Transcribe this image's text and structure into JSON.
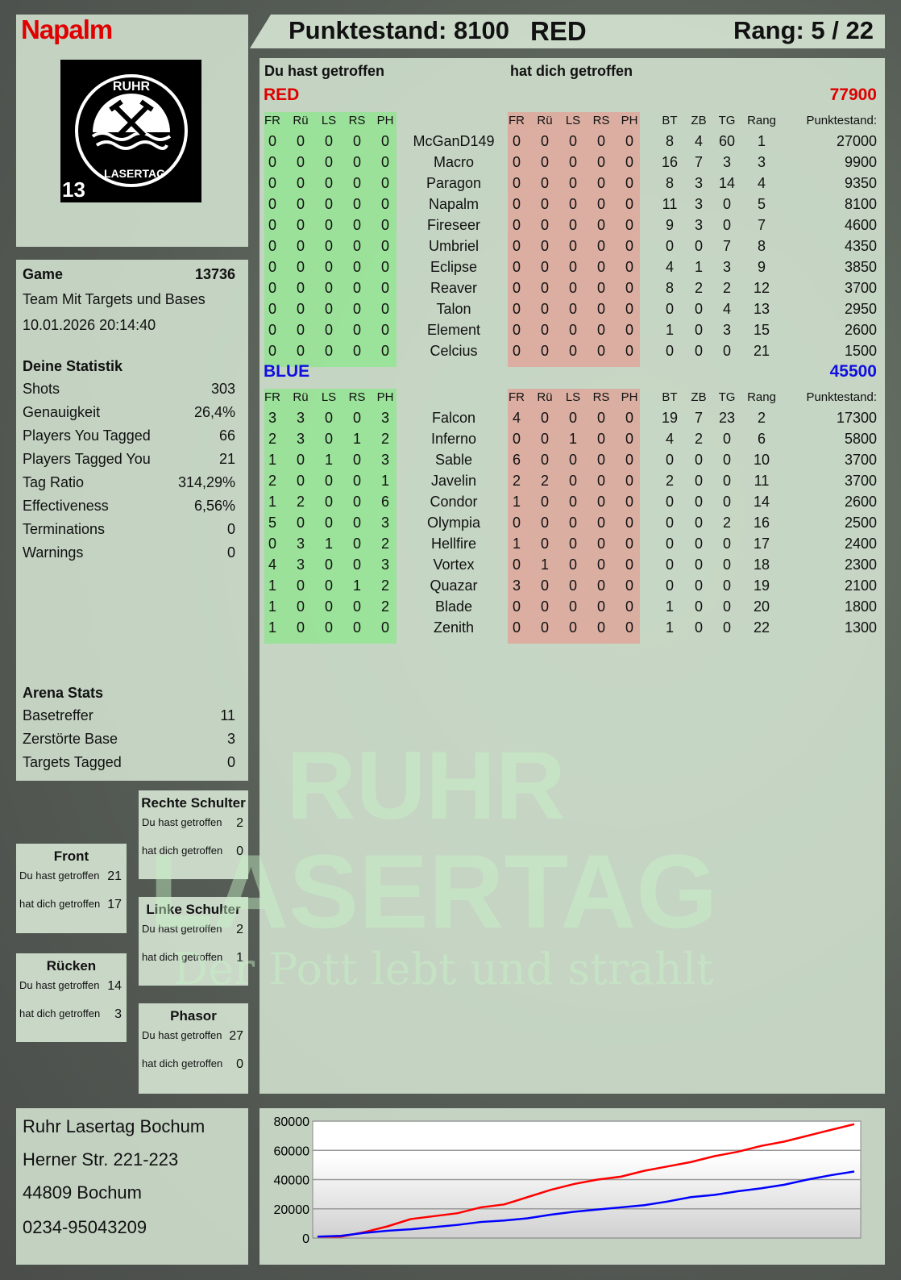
{
  "player": {
    "name": "Napalm",
    "score_label": "Punktestand: 8100",
    "team": "RED",
    "rank_label": "Rang: 5 / 22"
  },
  "logo": {
    "top": "RUHR",
    "bottom": "LASERTAG",
    "number": "13"
  },
  "watermark": {
    "line1": "RUHR",
    "line2": "LASERTAG",
    "slogan": "Der Pott lebt und strahlt"
  },
  "game": {
    "label": "Game",
    "id": "13736",
    "mode": "Team Mit Targets und Bases",
    "datetime": "10.01.2026 20:14:40"
  },
  "stats": {
    "title": "Deine Statistik",
    "rows": [
      [
        "Shots",
        "303"
      ],
      [
        "Genauigkeit",
        "26,4%"
      ],
      [
        "Players You Tagged",
        "66"
      ],
      [
        "Players Tagged You",
        "21"
      ],
      [
        "Tag Ratio",
        "314,29%"
      ],
      [
        "Effectiveness",
        "6,56%"
      ],
      [
        "Terminations",
        "0"
      ],
      [
        "Warnings",
        "0"
      ]
    ]
  },
  "arena": {
    "title": "Arena Stats",
    "rows": [
      [
        "Basetreffer",
        "11"
      ],
      [
        "Zerstörte Base",
        "3"
      ],
      [
        "Targets Tagged",
        "0"
      ]
    ]
  },
  "zones": [
    {
      "title": "Rechte Schulter",
      "hit_label": "Du hast getroffen",
      "hit": "2",
      "got_label": "hat dich getroffen",
      "got": "0"
    },
    {
      "title": "Front",
      "hit_label": "Du hast getroffen",
      "hit": "21",
      "got_label": "hat dich getroffen",
      "got": "17"
    },
    {
      "title": "Linke Schulter",
      "hit_label": "Du hast getroffen",
      "hit": "2",
      "got_label": "hat dich getroffen",
      "got": "1"
    },
    {
      "title": "Rücken",
      "hit_label": "Du hast getroffen",
      "hit": "14",
      "got_label": "hat dich getroffen",
      "got": "3"
    },
    {
      "title": "Phasor",
      "hit_label": "Du hast getroffen",
      "hit": "27",
      "got_label": "hat dich getroffen",
      "got": "0"
    }
  ],
  "address": [
    "Ruhr Lasertag Bochum",
    "Herner Str. 221-223",
    "44809 Bochum",
    "0234-95043209"
  ],
  "table": {
    "hit_title": "Du hast getroffen",
    "got_title": "hat dich getroffen",
    "columns_hit": [
      "FR",
      "Rü",
      "LS",
      "RS",
      "PH"
    ],
    "columns_got": [
      "FR",
      "Rü",
      "LS",
      "RS",
      "PH"
    ],
    "columns_stats": [
      "BT",
      "ZB",
      "TG",
      "Rang",
      "Punktestand:"
    ],
    "teams": [
      {
        "name": "RED",
        "total": "77900",
        "color": "#e00000",
        "rows": [
          [
            "0",
            "0",
            "0",
            "0",
            "0",
            "McGanD149",
            "0",
            "0",
            "0",
            "0",
            "0",
            "8",
            "4",
            "60",
            "1",
            "27000"
          ],
          [
            "0",
            "0",
            "0",
            "0",
            "0",
            "Macro",
            "0",
            "0",
            "0",
            "0",
            "0",
            "16",
            "7",
            "3",
            "3",
            "9900"
          ],
          [
            "0",
            "0",
            "0",
            "0",
            "0",
            "Paragon",
            "0",
            "0",
            "0",
            "0",
            "0",
            "8",
            "3",
            "14",
            "4",
            "9350"
          ],
          [
            "0",
            "0",
            "0",
            "0",
            "0",
            "Napalm",
            "0",
            "0",
            "0",
            "0",
            "0",
            "11",
            "3",
            "0",
            "5",
            "8100"
          ],
          [
            "0",
            "0",
            "0",
            "0",
            "0",
            "Fireseer",
            "0",
            "0",
            "0",
            "0",
            "0",
            "9",
            "3",
            "0",
            "7",
            "4600"
          ],
          [
            "0",
            "0",
            "0",
            "0",
            "0",
            "Umbriel",
            "0",
            "0",
            "0",
            "0",
            "0",
            "0",
            "0",
            "7",
            "8",
            "4350"
          ],
          [
            "0",
            "0",
            "0",
            "0",
            "0",
            "Eclipse",
            "0",
            "0",
            "0",
            "0",
            "0",
            "4",
            "1",
            "3",
            "9",
            "3850"
          ],
          [
            "0",
            "0",
            "0",
            "0",
            "0",
            "Reaver",
            "0",
            "0",
            "0",
            "0",
            "0",
            "8",
            "2",
            "2",
            "12",
            "3700"
          ],
          [
            "0",
            "0",
            "0",
            "0",
            "0",
            "Talon",
            "0",
            "0",
            "0",
            "0",
            "0",
            "0",
            "0",
            "4",
            "13",
            "2950"
          ],
          [
            "0",
            "0",
            "0",
            "0",
            "0",
            "Element",
            "0",
            "0",
            "0",
            "0",
            "0",
            "1",
            "0",
            "3",
            "15",
            "2600"
          ],
          [
            "0",
            "0",
            "0",
            "0",
            "0",
            "Celcius",
            "0",
            "0",
            "0",
            "0",
            "0",
            "0",
            "0",
            "0",
            "21",
            "1500"
          ]
        ]
      },
      {
        "name": "BLUE",
        "total": "45500",
        "color": "#1010e0",
        "rows": [
          [
            "3",
            "3",
            "0",
            "0",
            "3",
            "Falcon",
            "4",
            "0",
            "0",
            "0",
            "0",
            "19",
            "7",
            "23",
            "2",
            "17300"
          ],
          [
            "2",
            "3",
            "0",
            "1",
            "2",
            "Inferno",
            "0",
            "0",
            "1",
            "0",
            "0",
            "4",
            "2",
            "0",
            "6",
            "5800"
          ],
          [
            "1",
            "0",
            "1",
            "0",
            "3",
            "Sable",
            "6",
            "0",
            "0",
            "0",
            "0",
            "0",
            "0",
            "0",
            "10",
            "3700"
          ],
          [
            "2",
            "0",
            "0",
            "0",
            "1",
            "Javelin",
            "2",
            "2",
            "0",
            "0",
            "0",
            "2",
            "0",
            "0",
            "11",
            "3700"
          ],
          [
            "1",
            "2",
            "0",
            "0",
            "6",
            "Condor",
            "1",
            "0",
            "0",
            "0",
            "0",
            "0",
            "0",
            "0",
            "14",
            "2600"
          ],
          [
            "5",
            "0",
            "0",
            "0",
            "3",
            "Olympia",
            "0",
            "0",
            "0",
            "0",
            "0",
            "0",
            "0",
            "2",
            "16",
            "2500"
          ],
          [
            "0",
            "3",
            "1",
            "0",
            "2",
            "Hellfire",
            "1",
            "0",
            "0",
            "0",
            "0",
            "0",
            "0",
            "0",
            "17",
            "2400"
          ],
          [
            "4",
            "3",
            "0",
            "0",
            "3",
            "Vortex",
            "0",
            "1",
            "0",
            "0",
            "0",
            "0",
            "0",
            "0",
            "18",
            "2300"
          ],
          [
            "1",
            "0",
            "0",
            "1",
            "2",
            "Quazar",
            "3",
            "0",
            "0",
            "0",
            "0",
            "0",
            "0",
            "0",
            "19",
            "2100"
          ],
          [
            "1",
            "0",
            "0",
            "0",
            "2",
            "Blade",
            "0",
            "0",
            "0",
            "0",
            "0",
            "1",
            "0",
            "0",
            "20",
            "1800"
          ],
          [
            "1",
            "0",
            "0",
            "0",
            "0",
            "Zenith",
            "0",
            "0",
            "0",
            "0",
            "0",
            "1",
            "0",
            "0",
            "22",
            "1300"
          ]
        ]
      }
    ]
  },
  "chart_data": {
    "type": "line",
    "ylim": [
      0,
      80000
    ],
    "yticks": [
      "0",
      "20000",
      "40000",
      "60000",
      "80000"
    ],
    "grid": true,
    "series": [
      {
        "color": "#ff0000",
        "values": [
          1000,
          1000,
          4000,
          8000,
          13000,
          15000,
          17000,
          21000,
          23000,
          28000,
          33000,
          37000,
          40000,
          42000,
          46000,
          49000,
          52000,
          56000,
          59000,
          63000,
          66000,
          70000,
          74000,
          77900
        ]
      },
      {
        "color": "#0000ff",
        "values": [
          1000,
          1500,
          3500,
          5000,
          6000,
          7500,
          9000,
          11000,
          12000,
          13500,
          16000,
          18000,
          19500,
          21000,
          22500,
          25000,
          28000,
          29500,
          32000,
          34000,
          36500,
          40000,
          43000,
          45500
        ]
      }
    ]
  }
}
